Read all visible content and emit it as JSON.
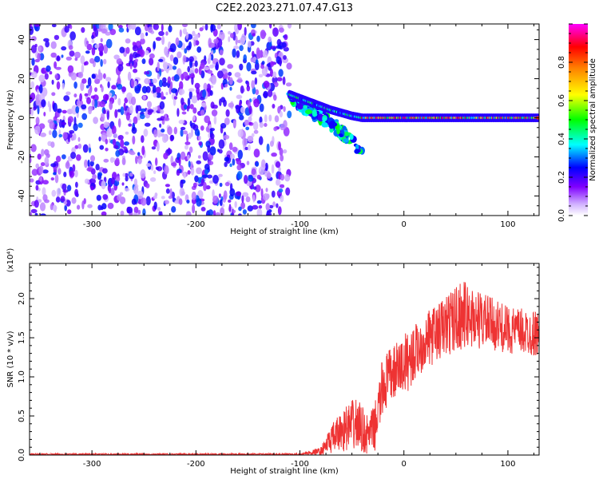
{
  "title": "C2E2.2023.271.07.47.G13",
  "colors": {
    "axis": "#000000",
    "snr_line": "#ee3333",
    "background": "#ffffff"
  },
  "chart_data": [
    {
      "type": "heatmap",
      "xlabel": "Height of straight line (km)",
      "ylabel": "Frequency (Hz)",
      "xlim": [
        -360,
        130
      ],
      "ylim": [
        -50,
        48
      ],
      "x_ticks": [
        -300,
        -200,
        -100,
        0,
        100
      ],
      "y_ticks": [
        -40,
        -20,
        0,
        20,
        40
      ],
      "colorbar": {
        "label": "Normalized spectral amplitude",
        "range": [
          0,
          1
        ],
        "ticks": [
          "0.0",
          "0.2",
          "0.4",
          "0.6",
          "0.8"
        ],
        "colormap": "rainbow (white to purple, blue, cyan, green, yellow, red, magenta)"
      },
      "regions": [
        {
          "x_range": [
            -360,
            -110
          ],
          "y_range": [
            -50,
            48
          ],
          "amplitude": [
            0.05,
            0.3
          ],
          "description_key": "noise"
        },
        {
          "x_range": [
            -110,
            -40
          ],
          "y_range": [
            -20,
            14
          ],
          "amplitude": [
            0.2,
            0.5
          ],
          "description_key": "signal-spread"
        },
        {
          "x_range": [
            -40,
            130
          ],
          "y_range": [
            -2,
            2
          ],
          "amplitude": [
            0.3,
            0.95
          ],
          "description_key": "carrier"
        }
      ],
      "carrier_path": [
        {
          "x": -110,
          "y": 12
        },
        {
          "x": -90,
          "y": 8
        },
        {
          "x": -70,
          "y": 4
        },
        {
          "x": -50,
          "y": 1
        },
        {
          "x": -40,
          "y": 0
        },
        {
          "x": 0,
          "y": 0
        },
        {
          "x": 130,
          "y": 0
        }
      ],
      "secondary_branches": [
        [
          {
            "x": -110,
            "y": 10
          },
          {
            "x": -80,
            "y": 2
          },
          {
            "x": -60,
            "y": -6
          },
          {
            "x": -40,
            "y": -18
          }
        ],
        [
          {
            "x": -100,
            "y": 6
          },
          {
            "x": -75,
            "y": -2
          },
          {
            "x": -55,
            "y": -10
          }
        ]
      ]
    },
    {
      "type": "line",
      "xlabel": "Height of straight line (km)",
      "ylabel": "SNR (10 * v/v)",
      "y_multiplier": "(x10⁴)",
      "xlim": [
        -360,
        130
      ],
      "ylim": [
        0,
        2.45
      ],
      "x_ticks": [
        -300,
        -200,
        -100,
        0,
        100
      ],
      "y_ticks": [
        "0.0",
        "0.5",
        "1.0",
        "1.5",
        "2.0"
      ],
      "series_envelope": [
        {
          "x": -360,
          "mean": 0.01,
          "amp": 0.01
        },
        {
          "x": -100,
          "mean": 0.01,
          "amp": 0.01
        },
        {
          "x": -80,
          "mean": 0.05,
          "amp": 0.05
        },
        {
          "x": -70,
          "mean": 0.2,
          "amp": 0.18
        },
        {
          "x": -55,
          "mean": 0.35,
          "amp": 0.3
        },
        {
          "x": -45,
          "mean": 0.4,
          "amp": 0.35
        },
        {
          "x": -35,
          "mean": 0.25,
          "amp": 0.25
        },
        {
          "x": -28,
          "mean": 0.35,
          "amp": 0.3
        },
        {
          "x": -20,
          "mean": 0.9,
          "amp": 0.4
        },
        {
          "x": -10,
          "mean": 1.05,
          "amp": 0.35
        },
        {
          "x": 0,
          "mean": 1.15,
          "amp": 0.4
        },
        {
          "x": 20,
          "mean": 1.45,
          "amp": 0.35
        },
        {
          "x": 40,
          "mean": 1.65,
          "amp": 0.4
        },
        {
          "x": 55,
          "mean": 1.8,
          "amp": 0.45
        },
        {
          "x": 80,
          "mean": 1.7,
          "amp": 0.35
        },
        {
          "x": 100,
          "mean": 1.6,
          "amp": 0.3
        },
        {
          "x": 130,
          "mean": 1.55,
          "amp": 0.3
        }
      ]
    }
  ]
}
